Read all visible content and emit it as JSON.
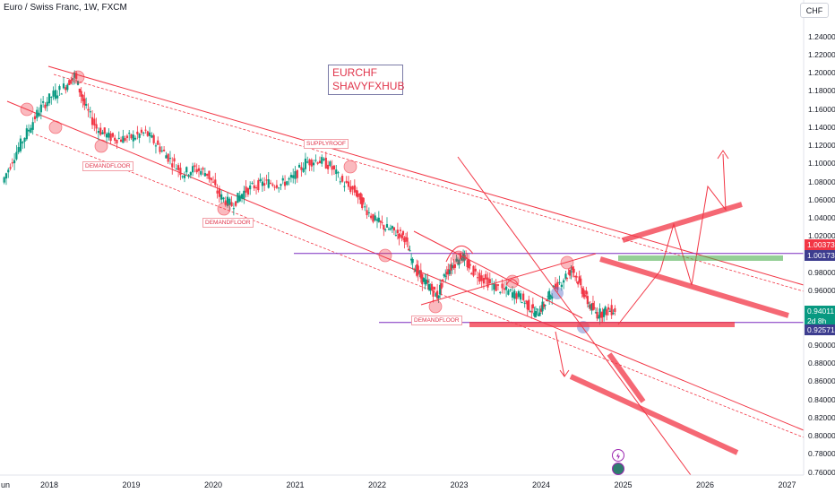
{
  "header": {
    "symbol_title": "Euro / Swiss Franc, 1W, FXCM"
  },
  "currency_button": "CHF",
  "annotation_box": {
    "line1": "EURCHF",
    "line2": "SHAVYFXHUB"
  },
  "notes": {
    "demand1": "DEMANDFLOOR",
    "demand2": "DEMANDFLOOR",
    "demand3": "DEMANDFLOOR",
    "supply": "SUPPLYROOF"
  },
  "badges": {
    "level_upper": "1.00373",
    "level_purple": "1.00173",
    "last_price": "0.94011",
    "countdown": "2d 8h",
    "level_lower": "0.92571"
  },
  "colors": {
    "up_candle": "#089981",
    "down_candle": "#f23645",
    "annotation_red": "#f23645",
    "purple_level": "#7b2cbf",
    "green_zone": "#4caf50",
    "price_badge": "#089981",
    "level_badge": "#f23645",
    "purple_badge": "#3d3d8f"
  },
  "chart_data": {
    "type": "candlestick",
    "x_axis": {
      "tick_labels": [
        "un",
        "2018",
        "2019",
        "2020",
        "2021",
        "2022",
        "2023",
        "2024",
        "2025",
        "2026",
        "2027"
      ]
    },
    "y_axis": {
      "tick_labels": [
        "1.24000",
        "1.22000",
        "1.20000",
        "1.18000",
        "1.16000",
        "1.14000",
        "1.12000",
        "1.10000",
        "1.08000",
        "1.06000",
        "1.04000",
        "1.02000",
        "1.00000",
        "0.98000",
        "0.96000",
        "0.94000",
        "0.92000",
        "0.90000",
        "0.88000",
        "0.86000",
        "0.84000",
        "0.82000",
        "0.80000",
        "0.78000",
        "0.76000"
      ],
      "range": [
        0.76,
        1.25
      ]
    },
    "price_path": [
      [
        2017.45,
        1.08
      ],
      [
        2017.6,
        1.11
      ],
      [
        2017.75,
        1.135
      ],
      [
        2017.9,
        1.16
      ],
      [
        2018.05,
        1.175
      ],
      [
        2018.2,
        1.185
      ],
      [
        2018.33,
        1.198
      ],
      [
        2018.45,
        1.165
      ],
      [
        2018.6,
        1.14
      ],
      [
        2018.75,
        1.13
      ],
      [
        2018.9,
        1.128
      ],
      [
        2019.05,
        1.13
      ],
      [
        2019.2,
        1.135
      ],
      [
        2019.35,
        1.12
      ],
      [
        2019.5,
        1.105
      ],
      [
        2019.65,
        1.09
      ],
      [
        2019.8,
        1.095
      ],
      [
        2019.95,
        1.09
      ],
      [
        2020.1,
        1.065
      ],
      [
        2020.25,
        1.055
      ],
      [
        2020.4,
        1.07
      ],
      [
        2020.55,
        1.077
      ],
      [
        2020.7,
        1.08
      ],
      [
        2020.85,
        1.078
      ],
      [
        2021.0,
        1.085
      ],
      [
        2021.15,
        1.102
      ],
      [
        2021.3,
        1.105
      ],
      [
        2021.45,
        1.098
      ],
      [
        2021.6,
        1.08
      ],
      [
        2021.75,
        1.07
      ],
      [
        2021.85,
        1.055
      ],
      [
        2022.0,
        1.038
      ],
      [
        2022.12,
        1.03
      ],
      [
        2022.25,
        1.025
      ],
      [
        2022.35,
        1.02
      ],
      [
        2022.45,
        0.99
      ],
      [
        2022.55,
        0.975
      ],
      [
        2022.65,
        0.965
      ],
      [
        2022.75,
        0.955
      ],
      [
        2022.85,
        0.98
      ],
      [
        2022.95,
        0.99
      ],
      [
        2023.05,
        1.0
      ],
      [
        2023.15,
        0.985
      ],
      [
        2023.3,
        0.975
      ],
      [
        2023.45,
        0.965
      ],
      [
        2023.6,
        0.96
      ],
      [
        2023.75,
        0.955
      ],
      [
        2023.85,
        0.945
      ],
      [
        2023.95,
        0.935
      ],
      [
        2024.05,
        0.945
      ],
      [
        2024.15,
        0.96
      ],
      [
        2024.3,
        0.975
      ],
      [
        2024.4,
        0.985
      ],
      [
        2024.5,
        0.965
      ],
      [
        2024.6,
        0.945
      ],
      [
        2024.7,
        0.935
      ],
      [
        2024.8,
        0.938
      ],
      [
        2024.92,
        0.94
      ]
    ],
    "levels": [
      {
        "name": "purple-resistance",
        "price": 1.0017
      },
      {
        "name": "purple-support",
        "price": 0.9257
      }
    ],
    "last_price": 0.94011
  }
}
